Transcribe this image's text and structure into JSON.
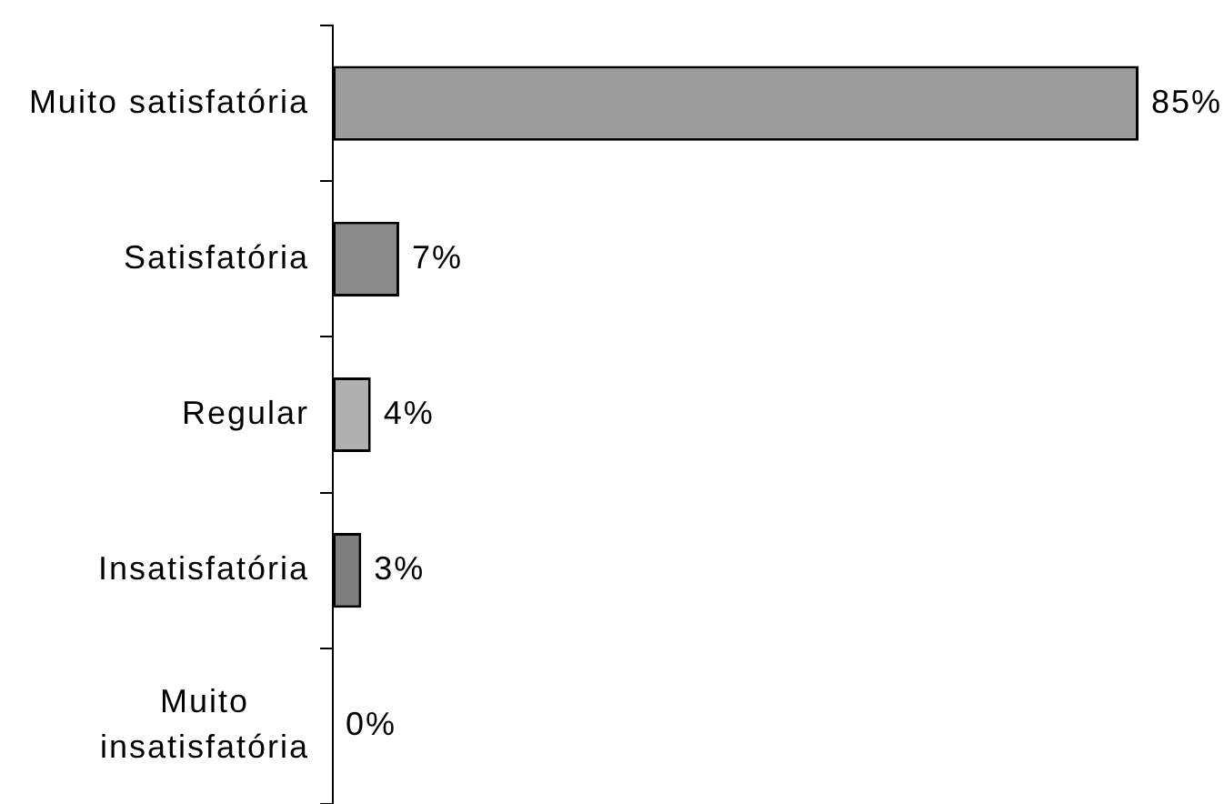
{
  "chart_data": {
    "type": "bar",
    "orientation": "horizontal",
    "categories": [
      "Muito satisfatória",
      "Satisfatória",
      "Regular",
      "Insatisfatória",
      "Muito insatisfatória"
    ],
    "values": [
      85,
      7,
      4,
      3,
      0
    ],
    "value_labels": [
      "85%",
      "7%",
      "4%",
      "3%",
      "0%"
    ],
    "colors": [
      "#9c9c9c",
      "#8a8a8a",
      "#b0b0b0",
      "#7e7e7e",
      null
    ],
    "tick_labels": "y",
    "grid": false,
    "legend": false
  }
}
